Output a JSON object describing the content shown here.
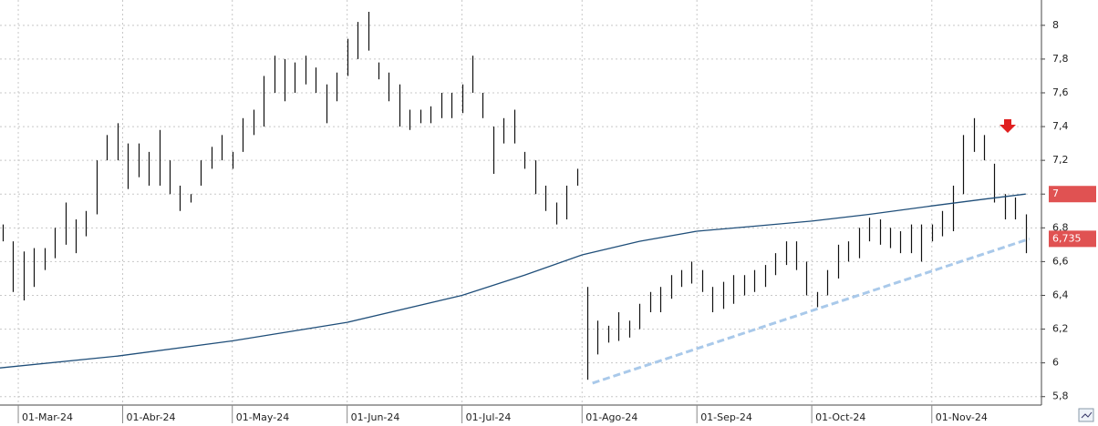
{
  "chart_data": {
    "type": "ohlc",
    "xlim": [
      -0.5,
      199
    ],
    "ylim": [
      5.75,
      8.15
    ],
    "grid": true,
    "xticks": [
      {
        "value": 3,
        "label": "01-Mar-24"
      },
      {
        "value": 23,
        "label": "01-Abr-24"
      },
      {
        "value": 44,
        "label": "01-May-24"
      },
      {
        "value": 66,
        "label": "01-Jun-24"
      },
      {
        "value": 88,
        "label": "01-Jul-24"
      },
      {
        "value": 111,
        "label": "01-Ago-24"
      },
      {
        "value": 133,
        "label": "01-Sep-24"
      },
      {
        "value": 155,
        "label": "01-Oct-24"
      },
      {
        "value": 178,
        "label": "01-Nov-24"
      }
    ],
    "yticks": [
      {
        "value": 5.8,
        "label": "5,8"
      },
      6,
      {
        "value": 6.2,
        "label": "6,2"
      },
      {
        "value": 6.4,
        "label": "6,4"
      },
      {
        "value": 6.6,
        "label": "6,6"
      },
      {
        "value": 6.8,
        "label": "6,8"
      },
      7,
      {
        "value": 7.2,
        "label": "7,2"
      },
      {
        "value": 7.4,
        "label": "7,4"
      },
      {
        "value": 7.6,
        "label": "7,6"
      },
      {
        "value": 7.8,
        "label": "7,8"
      },
      8
    ],
    "bars": {
      "color": "#111111",
      "x": [
        0,
        2,
        4,
        6,
        8,
        10,
        12,
        14,
        16,
        18,
        20,
        22,
        24,
        26,
        28,
        30,
        32,
        34,
        36,
        38,
        40,
        42,
        44,
        46,
        48,
        50,
        52,
        54,
        56,
        58,
        60,
        62,
        64,
        66,
        68,
        70,
        72,
        74,
        76,
        78,
        80,
        82,
        84,
        86,
        88,
        90,
        92,
        94,
        96,
        98,
        100,
        102,
        104,
        106,
        108,
        110,
        112,
        114,
        116,
        118,
        120,
        122,
        124,
        126,
        128,
        130,
        132,
        134,
        136,
        138,
        140,
        142,
        144,
        146,
        148,
        150,
        152,
        154,
        156,
        158,
        160,
        162,
        164,
        166,
        168,
        170,
        172,
        174,
        176,
        178,
        180,
        182,
        184,
        186,
        188,
        190,
        192,
        194,
        196
      ],
      "high": [
        6.82,
        6.72,
        6.66,
        6.68,
        6.68,
        6.8,
        6.95,
        6.85,
        6.9,
        7.2,
        7.35,
        7.42,
        7.3,
        7.3,
        7.25,
        7.38,
        7.2,
        7.05,
        7.0,
        7.2,
        7.28,
        7.35,
        7.25,
        7.45,
        7.5,
        7.7,
        7.82,
        7.8,
        7.78,
        7.82,
        7.75,
        7.65,
        7.72,
        7.92,
        8.02,
        8.08,
        7.78,
        7.72,
        7.65,
        7.5,
        7.5,
        7.52,
        7.6,
        7.6,
        7.65,
        7.82,
        7.6,
        7.4,
        7.45,
        7.5,
        7.25,
        7.2,
        7.05,
        6.95,
        7.05,
        7.15,
        6.45,
        6.25,
        6.22,
        6.3,
        6.25,
        6.35,
        6.42,
        6.45,
        6.52,
        6.55,
        6.6,
        6.55,
        6.45,
        6.48,
        6.52,
        6.52,
        6.55,
        6.58,
        6.65,
        6.72,
        6.72,
        6.6,
        6.42,
        6.55,
        6.7,
        6.72,
        6.8,
        6.86,
        6.85,
        6.8,
        6.78,
        6.82,
        6.82,
        6.82,
        6.9,
        7.05,
        7.35,
        7.45,
        7.35,
        7.18,
        7.0,
        6.98,
        6.88
      ],
      "low": [
        6.72,
        6.42,
        6.37,
        6.45,
        6.55,
        6.62,
        6.7,
        6.65,
        6.75,
        6.88,
        7.2,
        7.2,
        7.03,
        7.1,
        7.05,
        7.05,
        7.0,
        6.9,
        6.95,
        7.05,
        7.15,
        7.2,
        7.15,
        7.25,
        7.35,
        7.4,
        7.6,
        7.55,
        7.6,
        7.65,
        7.6,
        7.42,
        7.55,
        7.7,
        7.8,
        7.85,
        7.68,
        7.55,
        7.4,
        7.38,
        7.42,
        7.42,
        7.45,
        7.45,
        7.48,
        7.6,
        7.45,
        7.12,
        7.3,
        7.3,
        7.15,
        7.0,
        6.9,
        6.82,
        6.85,
        7.05,
        5.9,
        6.05,
        6.12,
        6.13,
        6.15,
        6.2,
        6.3,
        6.3,
        6.38,
        6.45,
        6.47,
        6.42,
        6.3,
        6.32,
        6.35,
        6.4,
        6.42,
        6.45,
        6.52,
        6.58,
        6.55,
        6.4,
        6.33,
        6.4,
        6.5,
        6.6,
        6.62,
        6.72,
        6.7,
        6.68,
        6.65,
        6.65,
        6.6,
        6.72,
        6.75,
        6.78,
        7.0,
        7.25,
        7.2,
        6.95,
        6.85,
        6.85,
        6.65
      ]
    },
    "lines": [
      {
        "color": "#1f4e79",
        "dashed": false,
        "x": [
          -0.5,
          22,
          44,
          66,
          88,
          100,
          111,
          122,
          133,
          144,
          155,
          166,
          178,
          188,
          196
        ],
        "values": [
          5.97,
          6.04,
          6.13,
          6.24,
          6.4,
          6.52,
          6.64,
          6.72,
          6.78,
          6.81,
          6.84,
          6.88,
          6.93,
          6.97,
          7.0
        ]
      },
      {
        "color": "#a9c9ea",
        "dashed": true,
        "x": [
          113,
          196.7
        ],
        "values": [
          5.88,
          6.735
        ]
      }
    ],
    "price_tags": [
      7,
      {
        "value": 6.735,
        "label": "6,735"
      }
    ],
    "tag_color": "#e05252"
  }
}
